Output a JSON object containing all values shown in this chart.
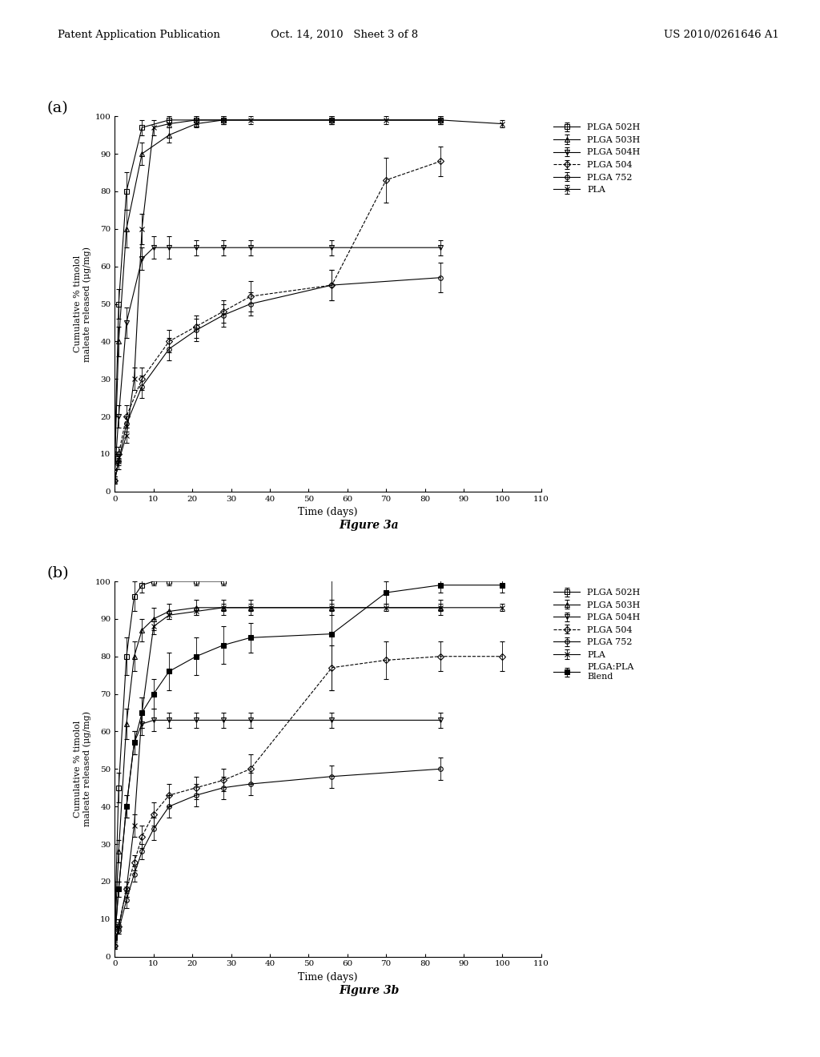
{
  "header_left": "Patent Application Publication",
  "header_center": "Oct. 14, 2010   Sheet 3 of 8",
  "header_right": "US 2010/0261646 A1",
  "panel_a": {
    "label": "(a)",
    "xlabel": "Time (days)",
    "ylabel": "Cumulative % timolol\nmaleate released (μg/mg)",
    "xlim": [
      0,
      110
    ],
    "ylim": [
      0,
      100
    ],
    "xticks": [
      0,
      10,
      20,
      30,
      40,
      50,
      60,
      70,
      80,
      90,
      100,
      110
    ],
    "yticks": [
      0,
      10,
      20,
      30,
      40,
      50,
      60,
      70,
      80,
      90,
      100
    ],
    "figure_label": "Figure 3a",
    "series": {
      "PLGA 502H": {
        "x": [
          0,
          1,
          3,
          7,
          14,
          21,
          28,
          56,
          84
        ],
        "y": [
          10,
          50,
          80,
          97,
          99,
          99,
          99,
          99,
          99
        ],
        "yerr": [
          2,
          4,
          5,
          2,
          1,
          1,
          1,
          1,
          1
        ],
        "marker": "s",
        "linestyle": "-",
        "fillstyle": "none"
      },
      "PLGA 503H": {
        "x": [
          0,
          1,
          3,
          7,
          14,
          21,
          28,
          56,
          84
        ],
        "y": [
          8,
          40,
          70,
          90,
          95,
          98,
          99,
          99,
          99
        ],
        "yerr": [
          2,
          4,
          5,
          3,
          2,
          1,
          1,
          1,
          1
        ],
        "marker": "^",
        "linestyle": "-",
        "fillstyle": "none"
      },
      "PLGA 504H": {
        "x": [
          0,
          1,
          3,
          7,
          10,
          14,
          21,
          28,
          35,
          56,
          84
        ],
        "y": [
          5,
          20,
          45,
          62,
          65,
          65,
          65,
          65,
          65,
          65,
          65
        ],
        "yerr": [
          1,
          3,
          4,
          3,
          3,
          3,
          2,
          2,
          2,
          2,
          2
        ],
        "marker": "v",
        "linestyle": "-",
        "fillstyle": "none"
      },
      "PLGA 504": {
        "x": [
          0,
          1,
          3,
          7,
          14,
          21,
          28,
          35,
          56,
          70,
          84
        ],
        "y": [
          3,
          10,
          20,
          30,
          40,
          44,
          48,
          52,
          55,
          83,
          88
        ],
        "yerr": [
          1,
          2,
          3,
          3,
          3,
          3,
          3,
          4,
          4,
          6,
          4
        ],
        "marker": "D",
        "linestyle": "--",
        "fillstyle": "none"
      },
      "PLGA 752": {
        "x": [
          0,
          1,
          3,
          7,
          14,
          21,
          28,
          35,
          56,
          84
        ],
        "y": [
          3,
          8,
          18,
          28,
          38,
          43,
          47,
          50,
          55,
          57
        ],
        "yerr": [
          1,
          2,
          2,
          3,
          3,
          3,
          3,
          3,
          4,
          4
        ],
        "marker": "o",
        "linestyle": "-",
        "fillstyle": "none"
      },
      "PLA": {
        "x": [
          0,
          1,
          3,
          5,
          7,
          10,
          14,
          21,
          28,
          35,
          56,
          70,
          84,
          100
        ],
        "y": [
          3,
          8,
          15,
          30,
          70,
          97,
          98,
          99,
          99,
          99,
          99,
          99,
          99,
          98
        ],
        "yerr": [
          1,
          1,
          2,
          3,
          4,
          2,
          1,
          1,
          1,
          1,
          1,
          1,
          1,
          1
        ],
        "marker": "x",
        "linestyle": "-",
        "fillstyle": "full"
      }
    },
    "legend_order": [
      "PLGA 502H",
      "PLGA 503H",
      "PLGA 504H",
      "PLGA 504",
      "PLGA 752",
      "PLA"
    ]
  },
  "panel_b": {
    "label": "(b)",
    "xlabel": "Time (days)",
    "ylabel": "Cumulative % timolol\nmaleate released (μg/mg)",
    "xlim": [
      0,
      110
    ],
    "ylim": [
      0,
      100
    ],
    "xticks": [
      0,
      10,
      20,
      30,
      40,
      50,
      60,
      70,
      80,
      90,
      100,
      110
    ],
    "yticks": [
      0,
      10,
      20,
      30,
      40,
      50,
      60,
      70,
      80,
      90,
      100
    ],
    "figure_label": "Figure 3b",
    "series": {
      "PLGA 502H": {
        "x": [
          0,
          1,
          3,
          5,
          7,
          10,
          14,
          21,
          28
        ],
        "y": [
          8,
          45,
          80,
          96,
          99,
          100,
          100,
          100,
          100
        ],
        "yerr": [
          2,
          4,
          5,
          4,
          2,
          1,
          1,
          1,
          1
        ],
        "marker": "s",
        "linestyle": "-",
        "fillstyle": "none"
      },
      "PLGA 503H": {
        "x": [
          0,
          1,
          3,
          5,
          7,
          10,
          14,
          21,
          28,
          35,
          56,
          84
        ],
        "y": [
          6,
          28,
          62,
          80,
          87,
          90,
          92,
          93,
          93,
          93,
          93,
          93
        ],
        "yerr": [
          2,
          3,
          4,
          4,
          3,
          3,
          2,
          2,
          2,
          2,
          2,
          2
        ],
        "marker": "^",
        "linestyle": "-",
        "fillstyle": "none"
      },
      "PLGA 504H": {
        "x": [
          0,
          1,
          3,
          5,
          7,
          10,
          14,
          21,
          28,
          35,
          56,
          84
        ],
        "y": [
          5,
          18,
          40,
          57,
          62,
          63,
          63,
          63,
          63,
          63,
          63,
          63
        ],
        "yerr": [
          1,
          2,
          3,
          3,
          3,
          3,
          2,
          2,
          2,
          2,
          2,
          2
        ],
        "marker": "v",
        "linestyle": "-",
        "fillstyle": "none"
      },
      "PLGA 504": {
        "x": [
          0,
          1,
          3,
          5,
          7,
          10,
          14,
          21,
          28,
          35,
          56,
          70,
          84,
          100
        ],
        "y": [
          3,
          8,
          18,
          25,
          32,
          38,
          43,
          45,
          47,
          50,
          77,
          79,
          80,
          80
        ],
        "yerr": [
          1,
          2,
          2,
          2,
          3,
          3,
          3,
          3,
          3,
          4,
          6,
          5,
          4,
          4
        ],
        "marker": "D",
        "linestyle": "--",
        "fillstyle": "none"
      },
      "PLGA 752": {
        "x": [
          0,
          1,
          3,
          5,
          7,
          10,
          14,
          21,
          28,
          35,
          56,
          84
        ],
        "y": [
          3,
          7,
          15,
          22,
          28,
          34,
          40,
          43,
          45,
          46,
          48,
          50
        ],
        "yerr": [
          1,
          1,
          2,
          2,
          2,
          3,
          3,
          3,
          3,
          3,
          3,
          3
        ],
        "marker": "o",
        "linestyle": "-",
        "fillstyle": "none"
      },
      "PLA": {
        "x": [
          0,
          1,
          3,
          5,
          7,
          10,
          14,
          21,
          28,
          35,
          56,
          70,
          84,
          100
        ],
        "y": [
          3,
          8,
          18,
          35,
          65,
          88,
          91,
          92,
          93,
          93,
          93,
          93,
          93,
          93
        ],
        "yerr": [
          1,
          1,
          2,
          3,
          4,
          2,
          1,
          1,
          1,
          1,
          1,
          1,
          1,
          1
        ],
        "marker": "x",
        "linestyle": "-",
        "fillstyle": "full"
      },
      "PLGA:PLA Blend": {
        "x": [
          0,
          1,
          3,
          5,
          7,
          10,
          14,
          21,
          28,
          35,
          56,
          70,
          84,
          100
        ],
        "y": [
          5,
          18,
          40,
          57,
          65,
          70,
          76,
          80,
          83,
          85,
          86,
          97,
          99,
          99
        ],
        "yerr": [
          1,
          2,
          3,
          3,
          4,
          4,
          5,
          5,
          5,
          4,
          15,
          3,
          2,
          2
        ],
        "marker": "s",
        "linestyle": "-",
        "fillstyle": "full"
      }
    },
    "legend_order": [
      "PLGA 502H",
      "PLGA 503H",
      "PLGA 504H",
      "PLGA 504",
      "PLGA 752",
      "PLA",
      "PLGA:PLA Blend"
    ]
  },
  "background_color": "#ffffff",
  "line_color": "#000000",
  "font_family": "DejaVu Serif"
}
